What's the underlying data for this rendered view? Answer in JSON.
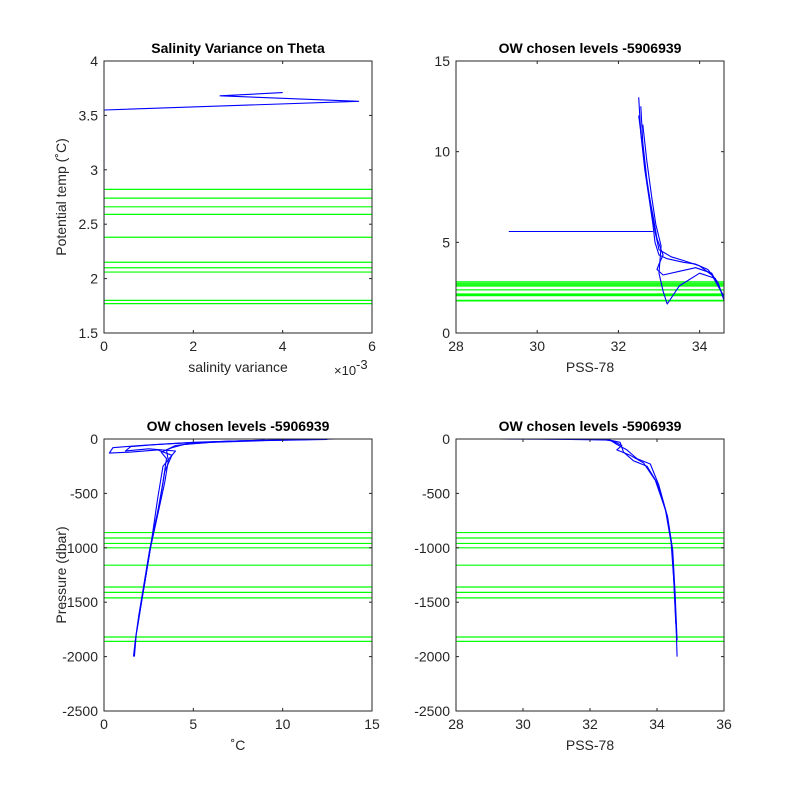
{
  "colors": {
    "profile": "#0000ff",
    "level": "#00ff00",
    "axis": "#262626"
  },
  "chart_data": [
    {
      "type": "line",
      "title": "Salinity Variance on Theta",
      "xlabel": "salinity variance",
      "ylabel": "Potential temp (˚C)",
      "x_exponent_label": "×10",
      "x_exponent_power": "-3",
      "xlim": [
        0,
        0.006
      ],
      "ylim": [
        1.5,
        4
      ],
      "xticks": [
        0,
        0.002,
        0.004,
        0.006
      ],
      "xtick_labels": [
        "0",
        "2",
        "4",
        "6"
      ],
      "yticks": [
        1.5,
        2,
        2.5,
        3,
        3.5,
        4
      ],
      "ytick_labels": [
        "1.5",
        "2",
        "2.5",
        "3",
        "3.5",
        "4"
      ],
      "series": [
        {
          "values": [
            [
              0,
              1.7
            ],
            [
              0,
              3.55
            ],
            [
              0.0057,
              3.63
            ],
            [
              0.0026,
              3.68
            ],
            [
              0.004,
              3.71
            ]
          ]
        }
      ],
      "hlines": [
        2.82,
        2.74,
        2.66,
        2.59,
        2.38,
        2.15,
        2.1,
        2.06,
        1.8,
        1.77
      ]
    },
    {
      "type": "line",
      "title": "OW chosen levels -5906939",
      "xlabel": "PSS-78",
      "ylabel": "",
      "xlim": [
        28,
        34.6
      ],
      "ylim": [
        0,
        15
      ],
      "xticks": [
        28,
        30,
        32,
        34
      ],
      "xtick_labels": [
        "28",
        "30",
        "32",
        "34"
      ],
      "yticks": [
        0,
        5,
        10,
        15
      ],
      "ytick_labels": [
        "0",
        "5",
        "10",
        "15"
      ],
      "series": [
        {
          "values": [
            [
              32.5,
              13
            ],
            [
              32.55,
              11
            ],
            [
              32.65,
              9
            ],
            [
              32.75,
              7.5
            ],
            [
              32.85,
              6
            ],
            [
              32.9,
              5
            ],
            [
              33.0,
              4.3
            ],
            [
              33.2,
              4.1
            ],
            [
              33.6,
              3.9
            ],
            [
              33.9,
              3.8
            ],
            [
              34.2,
              3.5
            ],
            [
              34.45,
              2.8
            ],
            [
              34.6,
              1.8
            ]
          ]
        },
        {
          "values": [
            [
              32.55,
              12.5
            ],
            [
              32.6,
              10.5
            ],
            [
              32.7,
              8.5
            ],
            [
              32.8,
              7
            ],
            [
              32.9,
              5.6
            ],
            [
              33.0,
              4.6
            ],
            [
              33.3,
              4.2
            ],
            [
              33.6,
              4.0
            ],
            [
              34.0,
              3.7
            ],
            [
              34.3,
              3.2
            ],
            [
              34.55,
              2.2
            ]
          ]
        },
        {
          "values": [
            [
              32.5,
              12
            ],
            [
              32.62,
              9.8
            ],
            [
              32.72,
              8
            ],
            [
              32.85,
              6.5
            ],
            [
              32.95,
              5.2
            ],
            [
              33.1,
              4.3
            ],
            [
              33.0,
              3.8
            ],
            [
              32.95,
              3.5
            ],
            [
              33.1,
              3.2
            ],
            [
              33.5,
              3.4
            ],
            [
              33.9,
              3.6
            ],
            [
              34.3,
              3.3
            ],
            [
              34.6,
              2.0
            ]
          ]
        },
        {
          "values": [
            [
              32.6,
              11.5
            ],
            [
              32.7,
              9.5
            ],
            [
              32.82,
              7.5
            ],
            [
              32.92,
              6
            ],
            [
              33.05,
              4.8
            ],
            [
              33.0,
              3.3
            ],
            [
              33.1,
              2.3
            ],
            [
              33.2,
              1.6
            ],
            [
              33.5,
              2.6
            ],
            [
              34.0,
              3.3
            ],
            [
              34.4,
              3.0
            ]
          ]
        },
        {
          "values": [
            [
              29.3,
              5.6
            ],
            [
              32.85,
              5.6
            ]
          ]
        }
      ],
      "hlines": [
        2.82,
        2.74,
        2.66,
        2.59,
        2.38,
        2.15,
        2.1,
        2.06,
        1.8,
        1.77
      ]
    },
    {
      "type": "line",
      "title": "OW chosen levels -5906939",
      "xlabel": "˚C",
      "ylabel": "Pressure (dbar)",
      "xlim": [
        0,
        15
      ],
      "ylim": [
        -2500,
        0
      ],
      "xticks": [
        0,
        5,
        10,
        15
      ],
      "xtick_labels": [
        "0",
        "5",
        "10",
        "15"
      ],
      "yticks": [
        -2500,
        -2000,
        -1500,
        -1000,
        -500,
        0
      ],
      "ytick_labels": [
        "-2500",
        "-2000",
        "-1500",
        "-1000",
        "-500",
        "0"
      ],
      "series": [
        {
          "values": [
            [
              13,
              0
            ],
            [
              10,
              -10
            ],
            [
              7,
              -20
            ],
            [
              5,
              -40
            ],
            [
              4,
              -60
            ],
            [
              3.5,
              -100
            ],
            [
              3.6,
              -200
            ],
            [
              3.4,
              -400
            ],
            [
              3,
              -700
            ],
            [
              2.6,
              -1000
            ],
            [
              2.3,
              -1300
            ],
            [
              2,
              -1600
            ],
            [
              1.8,
              -1800
            ],
            [
              1.7,
              -2000
            ]
          ]
        },
        {
          "values": [
            [
              12.5,
              -5
            ],
            [
              9,
              -15
            ],
            [
              6,
              -30
            ],
            [
              4.5,
              -50
            ],
            [
              3.8,
              -80
            ],
            [
              3.2,
              -120
            ],
            [
              3.5,
              -180
            ],
            [
              3.3,
              -400
            ],
            [
              2.95,
              -720
            ],
            [
              2.55,
              -1020
            ],
            [
              2.25,
              -1320
            ],
            [
              1.95,
              -1620
            ],
            [
              1.75,
              -1850
            ],
            [
              1.65,
              -2000
            ]
          ]
        },
        {
          "values": [
            [
              11,
              -5
            ],
            [
              7,
              -20
            ],
            [
              4,
              -40
            ],
            [
              2,
              -60
            ],
            [
              0.5,
              -80
            ],
            [
              0.3,
              -130
            ],
            [
              1.5,
              -120
            ],
            [
              3,
              -100
            ],
            [
              3.8,
              -150
            ],
            [
              3.4,
              -300
            ],
            [
              3.1,
              -600
            ],
            [
              2.7,
              -900
            ],
            [
              2.4,
              -1200
            ],
            [
              2.1,
              -1500
            ],
            [
              1.85,
              -1750
            ]
          ]
        },
        {
          "values": [
            [
              9,
              -10
            ],
            [
              5,
              -30
            ],
            [
              3,
              -50
            ],
            [
              1.5,
              -70
            ],
            [
              1.2,
              -110
            ],
            [
              2.5,
              -90
            ],
            [
              4,
              -110
            ],
            [
              3.3,
              -250
            ],
            [
              3,
              -550
            ],
            [
              2.65,
              -950
            ],
            [
              2.2,
              -1400
            ]
          ]
        }
      ],
      "hlines": [
        -860,
        -910,
        -960,
        -1000,
        -1160,
        -1360,
        -1410,
        -1460,
        -1820,
        -1860
      ]
    },
    {
      "type": "line",
      "title": "OW chosen levels -5906939",
      "xlabel": "PSS-78",
      "ylabel": "",
      "xlim": [
        28,
        36
      ],
      "ylim": [
        -2500,
        0
      ],
      "xticks": [
        28,
        30,
        32,
        34,
        36
      ],
      "xtick_labels": [
        "28",
        "30",
        "32",
        "34",
        "36"
      ],
      "yticks": [
        -2500,
        -2000,
        -1500,
        -1000,
        -500,
        0
      ],
      "ytick_labels": [
        "-2500",
        "-2000",
        "-1500",
        "-1000",
        "-500",
        "0"
      ],
      "series": [
        {
          "values": [
            [
              29.3,
              0
            ],
            [
              32.5,
              -5
            ],
            [
              32.9,
              -30
            ],
            [
              33.0,
              -120
            ],
            [
              33.3,
              -200
            ],
            [
              33.7,
              -250
            ],
            [
              34.0,
              -400
            ],
            [
              34.3,
              -700
            ],
            [
              34.45,
              -1000
            ],
            [
              34.52,
              -1400
            ],
            [
              34.58,
              -1800
            ],
            [
              34.6,
              -2000
            ]
          ]
        },
        {
          "values": [
            [
              30.5,
              0
            ],
            [
              32.6,
              -10
            ],
            [
              32.8,
              -50
            ],
            [
              33.1,
              -100
            ],
            [
              33.4,
              -180
            ],
            [
              33.8,
              -230
            ],
            [
              34.05,
              -420
            ],
            [
              34.32,
              -720
            ],
            [
              34.47,
              -1020
            ],
            [
              34.54,
              -1420
            ],
            [
              34.6,
              -1850
            ]
          ]
        },
        {
          "values": [
            [
              32.3,
              0
            ],
            [
              32.7,
              -20
            ],
            [
              32.95,
              -60
            ],
            [
              32.8,
              -100
            ],
            [
              33.2,
              -150
            ],
            [
              33.6,
              -220
            ],
            [
              33.95,
              -380
            ],
            [
              34.25,
              -650
            ],
            [
              34.42,
              -950
            ],
            [
              34.5,
              -1300
            ],
            [
              34.56,
              -1700
            ]
          ]
        }
      ],
      "hlines": [
        -860,
        -910,
        -960,
        -1000,
        -1160,
        -1360,
        -1410,
        -1460,
        -1820,
        -1860
      ]
    }
  ]
}
